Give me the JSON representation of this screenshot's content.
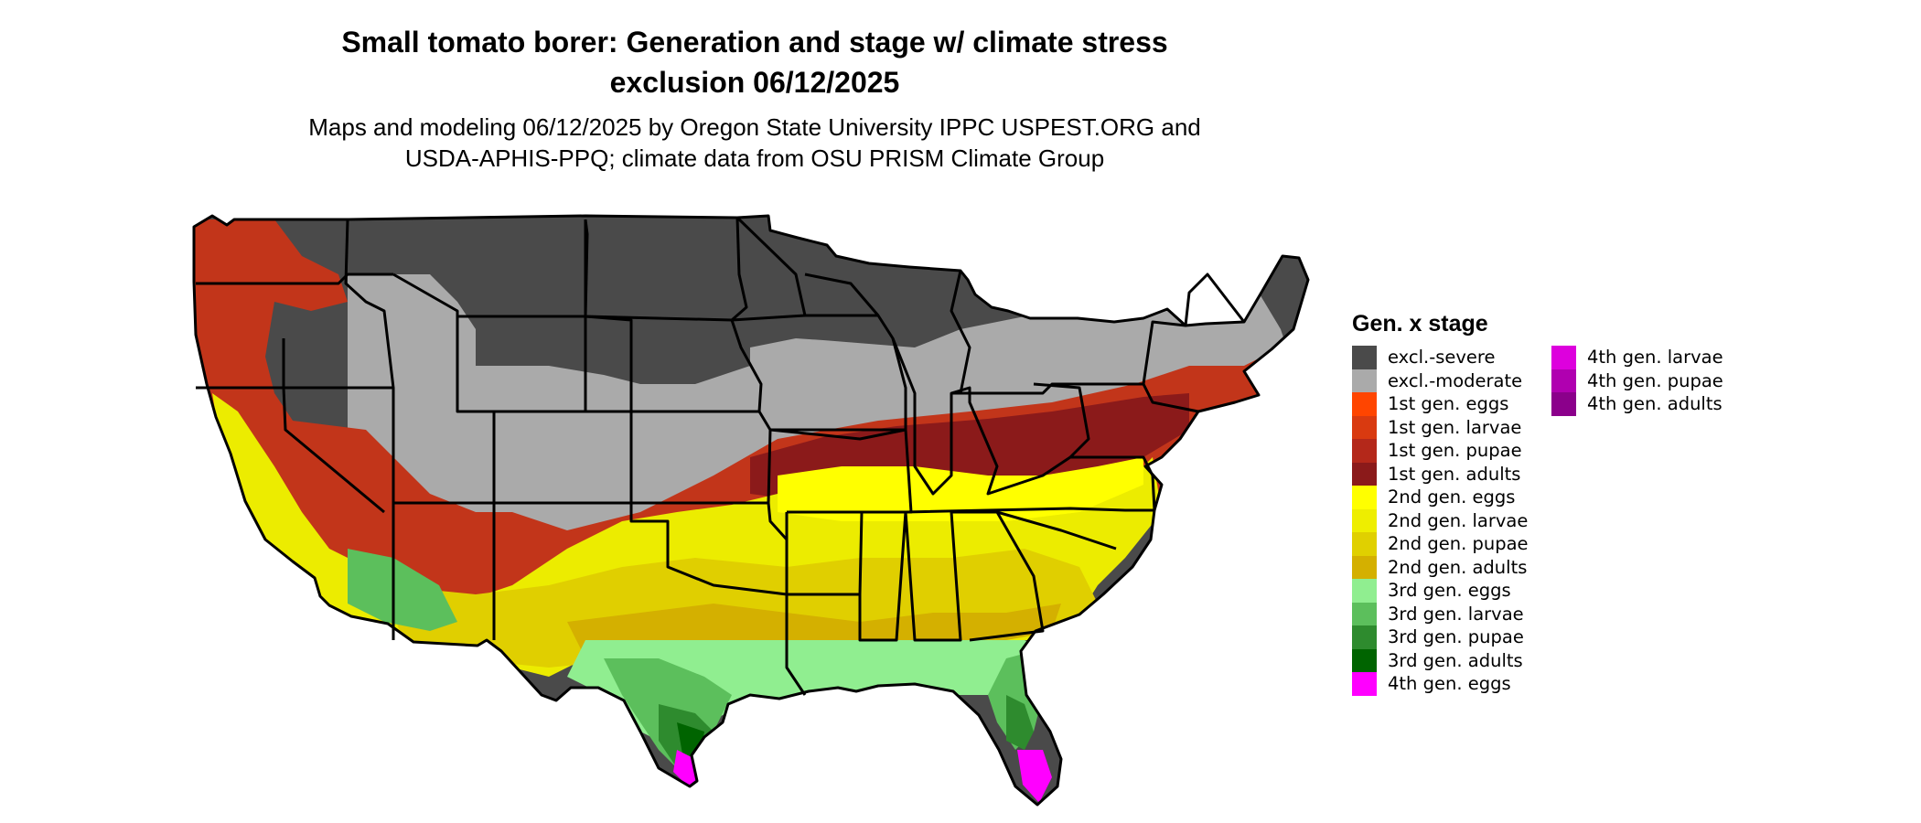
{
  "title_line1": "Small tomato borer: Generation and stage w/ climate stress",
  "title_line2": "exclusion 06/12/2025",
  "subtitle_line1": "Maps and modeling 06/12/2025 by Oregon State University IPPC USPEST.ORG and",
  "subtitle_line2": "USDA-APHIS-PPQ; climate data from OSU PRISM Climate Group",
  "legend": {
    "title": "Gen. x stage",
    "col1": [
      {
        "label": "excl.-severe",
        "color": "#4a4a4a"
      },
      {
        "label": "excl.-moderate",
        "color": "#aaaaaa"
      },
      {
        "label": "1st gen. eggs",
        "color": "#ff4500"
      },
      {
        "label": "1st gen. larvae",
        "color": "#d93a10"
      },
      {
        "label": "1st gen. pupae",
        "color": "#b4281a"
      },
      {
        "label": "1st gen. adults",
        "color": "#8b1a1a"
      },
      {
        "label": "2nd gen. eggs",
        "color": "#ffff00"
      },
      {
        "label": "2nd gen. larvae",
        "color": "#eeee00"
      },
      {
        "label": "2nd gen. pupae",
        "color": "#e0d000"
      },
      {
        "label": "2nd gen. adults",
        "color": "#d4b000"
      },
      {
        "label": "3rd gen. eggs",
        "color": "#90ee90"
      },
      {
        "label": "3rd gen. larvae",
        "color": "#5cbf5c"
      },
      {
        "label": "3rd gen. pupae",
        "color": "#2e8b2e"
      },
      {
        "label": "3rd gen. adults",
        "color": "#006400"
      },
      {
        "label": "4th gen. eggs",
        "color": "#ff00ff"
      }
    ],
    "col2": [
      {
        "label": "4th gen. larvae",
        "color": "#dd00dd"
      },
      {
        "label": "4th gen. pupae",
        "color": "#b000b0"
      },
      {
        "label": "4th gen. adults",
        "color": "#8b008b"
      }
    ]
  }
}
